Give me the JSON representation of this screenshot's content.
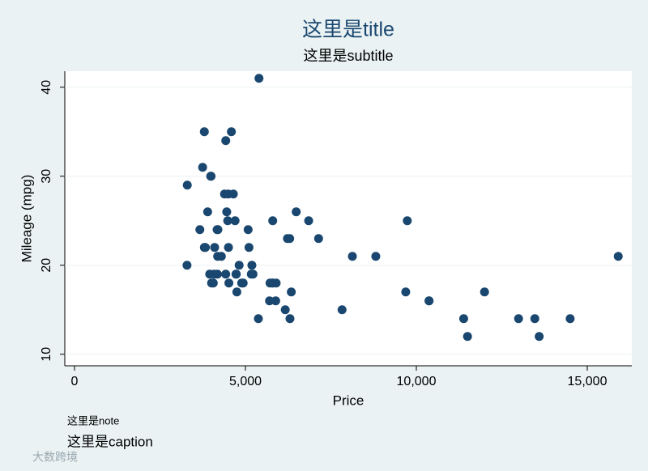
{
  "chart_data": {
    "type": "scatter",
    "title": "这里是title",
    "subtitle": "这里是subtitle",
    "xlabel": "Price",
    "ylabel": "Mileage (mpg)",
    "note": "这里是note",
    "caption": "这里是caption",
    "watermark": "大数跨境",
    "color": "#1a476f",
    "grid": true,
    "xlim": [
      -284,
      16303
    ],
    "ylim": [
      8.7,
      41.8
    ],
    "xticks": [
      0,
      {
        "value": 5000,
        "label": "5,000"
      },
      {
        "value": 10000,
        "label": "10,000"
      },
      {
        "value": 15000,
        "label": "15,000"
      }
    ],
    "yticks": [
      10,
      20,
      30,
      40
    ],
    "x": [
      4099,
      4749,
      3799,
      4816,
      7827,
      5788,
      4453,
      5189,
      10372,
      4082,
      11385,
      14500,
      15906,
      3299,
      5705,
      4504,
      5104,
      3667,
      3955,
      3984,
      4010,
      5886,
      6342,
      4389,
      4187,
      11497,
      13594,
      13466,
      3829,
      5379,
      6165,
      4516,
      6303,
      3291,
      8814,
      5172,
      4733,
      4890,
      4181,
      4195,
      10371,
      4647,
      4425,
      4482,
      6486,
      4060,
      5798,
      4934,
      5222,
      4723,
      4424,
      4172,
      9690,
      6295,
      9735,
      6229,
      4589,
      5079,
      8129,
      4296,
      5799,
      4499,
      3995,
      12990,
      3895,
      3798,
      5899,
      3748,
      5719,
      7140,
      5397,
      4697,
      6850,
      11995
    ],
    "y": [
      22,
      17,
      22,
      20,
      15,
      18,
      26,
      20,
      16,
      19,
      14,
      14,
      21,
      29,
      16,
      22,
      22,
      24,
      19,
      30,
      18,
      16,
      17,
      28,
      21,
      12,
      12,
      14,
      22,
      14,
      15,
      18,
      14,
      20,
      21,
      19,
      19,
      18,
      19,
      24,
      16,
      28,
      34,
      25,
      26,
      18,
      18,
      18,
      19,
      19,
      19,
      24,
      17,
      23,
      25,
      23,
      35,
      24,
      21,
      21,
      25,
      28,
      30,
      14,
      26,
      35,
      18,
      31,
      18,
      23,
      41,
      25,
      25,
      17
    ]
  }
}
